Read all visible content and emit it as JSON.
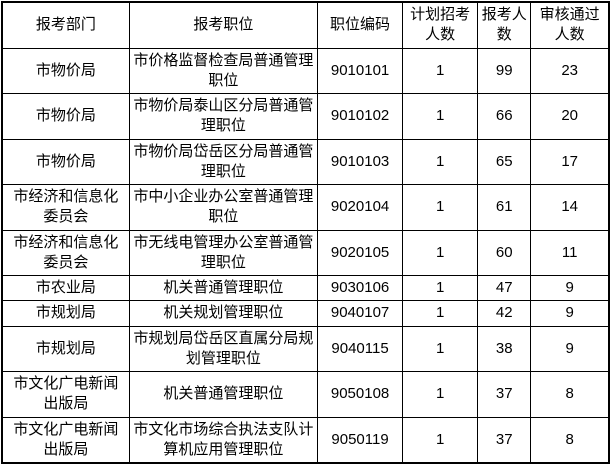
{
  "table": {
    "headers": [
      "报考部门",
      "报考职位",
      "职位编码",
      "计划招考人数",
      "报考人数",
      "审核通过人数"
    ],
    "rows": [
      [
        "市物价局",
        "市价格监督检查局普通管理职位",
        "9010101",
        "1",
        "99",
        "23"
      ],
      [
        "市物价局",
        "市物价局泰山区分局普通管理职位",
        "9010102",
        "1",
        "66",
        "20"
      ],
      [
        "市物价局",
        "市物价局岱岳区分局普通管理职位",
        "9010103",
        "1",
        "65",
        "17"
      ],
      [
        "市经济和信息化委员会",
        "市中小企业办公室普通管理职位",
        "9020104",
        "1",
        "61",
        "14"
      ],
      [
        "市经济和信息化委员会",
        "市无线电管理办公室普通管理职位",
        "9020105",
        "1",
        "60",
        "11"
      ],
      [
        "市农业局",
        "机关普通管理职位",
        "9030106",
        "1",
        "47",
        "9"
      ],
      [
        "市规划局",
        "机关规划管理职位",
        "9040107",
        "1",
        "42",
        "9"
      ],
      [
        "市规划局",
        "市规划局岱岳区直属分局规划管理职位",
        "9040115",
        "1",
        "38",
        "9"
      ],
      [
        "市文化广电新闻出版局",
        "机关普通管理职位",
        "9050108",
        "1",
        "37",
        "8"
      ],
      [
        "市文化广电新闻出版局",
        "市文化市场综合执法支队计算机应用管理职位",
        "9050119",
        "1",
        "37",
        "8"
      ]
    ],
    "cell_names": [
      "department-cell",
      "position-cell",
      "position-code-cell",
      "planned-recruit-count-cell",
      "applicant-count-cell",
      "approved-count-cell"
    ]
  },
  "colors": {
    "border": "#000000",
    "background": "#ffffff",
    "text": "#000000"
  }
}
